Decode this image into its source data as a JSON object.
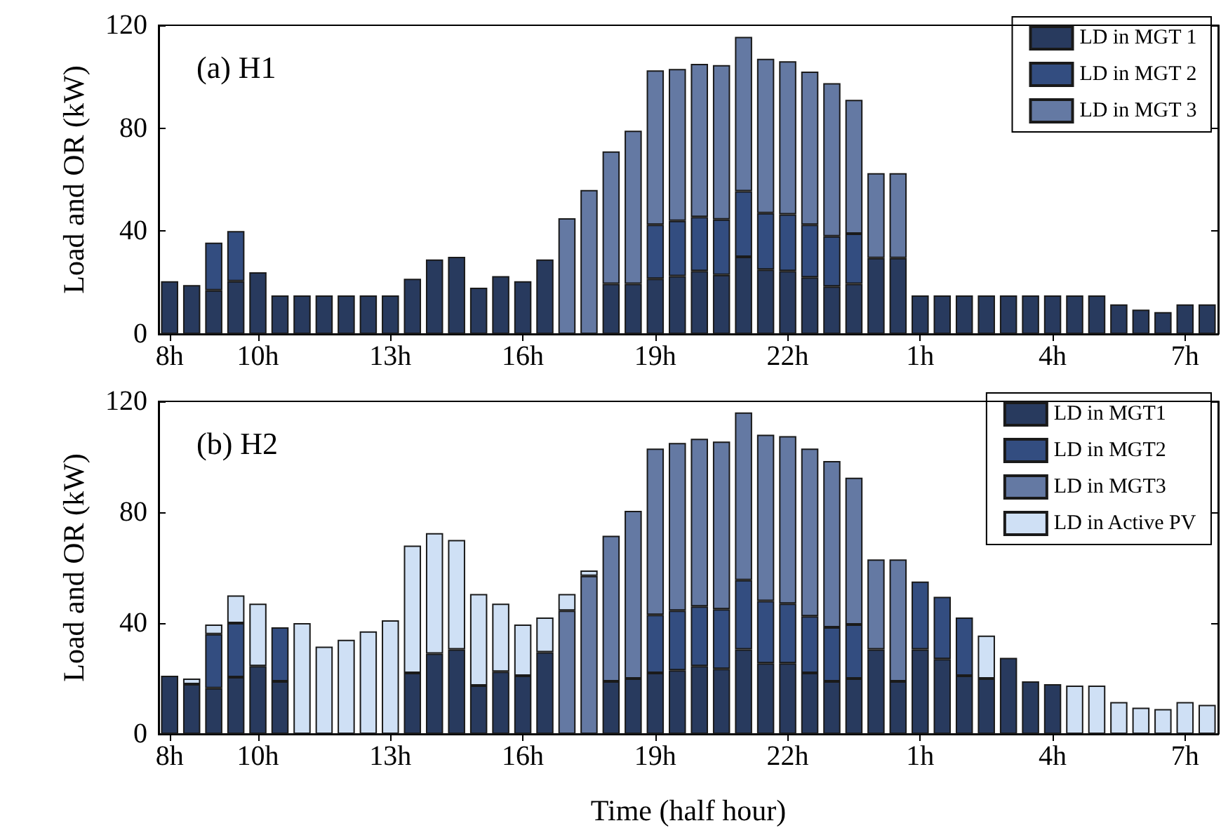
{
  "chart_data": [
    {
      "type": "bar",
      "title": "(a) H1",
      "ylabel": "Load and OR (kW)",
      "stacked": true,
      "legend": "top right",
      "grid": false,
      "categories": [
        "8h",
        null,
        null,
        null,
        "10h",
        null,
        null,
        null,
        null,
        null,
        "13h",
        null,
        null,
        null,
        null,
        null,
        "16h",
        null,
        null,
        null,
        null,
        null,
        "19h",
        null,
        null,
        null,
        null,
        null,
        "22h",
        null,
        null,
        null,
        null,
        null,
        "1h",
        null,
        null,
        null,
        null,
        null,
        "4h",
        null,
        null,
        null,
        null,
        null,
        "7h",
        null
      ],
      "ylim": [
        0,
        120
      ],
      "yticks": [
        0,
        40,
        80,
        120
      ],
      "series": [
        {
          "name": "LD in MGT 1",
          "color": "#283a5e",
          "values": [
            20.5,
            19,
            17,
            20.5,
            24,
            15,
            15,
            15,
            15,
            15,
            15,
            21.5,
            29,
            30,
            18,
            22.5,
            20.5,
            29,
            null,
            null,
            19.5,
            19.5,
            21.5,
            22.5,
            24.5,
            23,
            30,
            25,
            24.5,
            22,
            18.5,
            19.5,
            29.5,
            29.5,
            15,
            15,
            15,
            15,
            15,
            15,
            15,
            15,
            15,
            11.5,
            9.5,
            8.5,
            11.5,
            11.5
          ]
        },
        {
          "name": "LD in MGT 2",
          "color": "#334d80",
          "values": [
            null,
            null,
            18.5,
            19.5,
            null,
            null,
            null,
            null,
            null,
            null,
            null,
            null,
            null,
            null,
            null,
            null,
            null,
            null,
            null,
            null,
            null,
            null,
            21,
            21.5,
            21,
            21.5,
            25.5,
            22,
            22,
            20.5,
            19.5,
            19.5,
            null,
            null,
            null,
            null,
            null,
            null,
            null,
            null,
            null,
            null,
            null,
            null,
            null,
            null,
            null,
            null
          ]
        },
        {
          "name": "LD in MGT 3",
          "color": "#6479a3",
          "values": [
            null,
            null,
            null,
            null,
            null,
            null,
            null,
            null,
            null,
            null,
            null,
            null,
            null,
            null,
            null,
            null,
            null,
            null,
            45,
            56,
            51.5,
            59.5,
            60,
            59,
            59.5,
            60,
            60,
            60,
            59.5,
            59.5,
            59.5,
            52,
            33,
            33,
            null,
            null,
            null,
            null,
            null,
            null,
            null,
            null,
            null,
            null,
            null,
            null,
            null,
            null
          ]
        }
      ]
    },
    {
      "type": "bar",
      "title": "(b) H2",
      "ylabel": "Load and OR (kW)",
      "xlabel": "Time (half hour)",
      "stacked": true,
      "legend": "top right",
      "grid": false,
      "categories": [
        "8h",
        null,
        null,
        null,
        "10h",
        null,
        null,
        null,
        null,
        null,
        "13h",
        null,
        null,
        null,
        null,
        null,
        "16h",
        null,
        null,
        null,
        null,
        null,
        "19h",
        null,
        null,
        null,
        null,
        null,
        "22h",
        null,
        null,
        null,
        null,
        null,
        "1h",
        null,
        null,
        null,
        null,
        null,
        "4h",
        null,
        null,
        null,
        null,
        null,
        "7h",
        null
      ],
      "ylim": [
        0,
        120
      ],
      "yticks": [
        0,
        40,
        80,
        120
      ],
      "series": [
        {
          "name": "LD in MGT1",
          "color": "#283a5e",
          "values": [
            21,
            18,
            16.5,
            20.5,
            24.5,
            19,
            null,
            null,
            null,
            null,
            null,
            22,
            29,
            30.5,
            17.5,
            22.5,
            21,
            29.5,
            null,
            null,
            19,
            20,
            22,
            23,
            24.5,
            23.5,
            30.5,
            25.5,
            25.5,
            22,
            19,
            20,
            30.5,
            19,
            30.5,
            27,
            21,
            20,
            27.5,
            19,
            18,
            null,
            null,
            null,
            null,
            null,
            null,
            null
          ]
        },
        {
          "name": "LD in MGT2",
          "color": "#334d80",
          "values": [
            null,
            null,
            19.5,
            19.5,
            null,
            19.5,
            null,
            null,
            null,
            null,
            null,
            null,
            null,
            null,
            null,
            null,
            null,
            null,
            null,
            null,
            null,
            null,
            21,
            21.5,
            21.5,
            21.5,
            25,
            22.5,
            21.5,
            20.5,
            19.5,
            19.5,
            null,
            null,
            24.5,
            22.5,
            21,
            null,
            null,
            null,
            null,
            null,
            null,
            null,
            null,
            null,
            null,
            null
          ]
        },
        {
          "name": "LD in MGT3",
          "color": "#6479a3",
          "values": [
            null,
            null,
            null,
            null,
            null,
            null,
            null,
            null,
            null,
            null,
            null,
            null,
            null,
            null,
            null,
            null,
            null,
            null,
            44.5,
            57,
            52.5,
            60.5,
            60,
            60.5,
            60.5,
            60.5,
            60.5,
            60,
            60.5,
            60.5,
            60,
            53,
            32.5,
            44,
            null,
            null,
            null,
            null,
            null,
            null,
            null,
            null,
            null,
            null,
            null,
            null,
            null,
            null
          ]
        },
        {
          "name": "LD in Active PV",
          "color": "#cfe0f5",
          "values": [
            null,
            2,
            3.5,
            10,
            22.5,
            null,
            40,
            31.5,
            34,
            37,
            41,
            46,
            43.5,
            39.5,
            33,
            24.5,
            18.5,
            12.5,
            6,
            2,
            null,
            null,
            null,
            null,
            null,
            null,
            null,
            null,
            null,
            null,
            null,
            null,
            null,
            null,
            null,
            null,
            null,
            15.5,
            null,
            null,
            null,
            17.5,
            17.5,
            11.5,
            9.5,
            9,
            11.5,
            10.5
          ]
        }
      ]
    }
  ]
}
